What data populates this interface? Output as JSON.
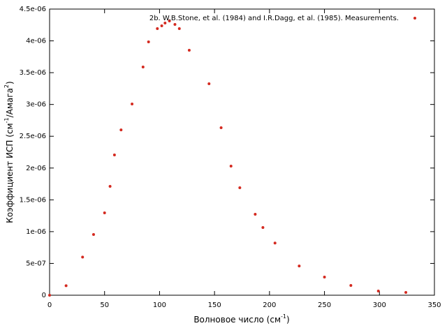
{
  "chart_data": {
    "type": "scatter",
    "x_label": [
      "Волновое число (см",
      "-1",
      ")"
    ],
    "y_label": [
      "Коэффициент ИСП (см",
      "-1",
      "/Амага",
      "2",
      ")"
    ],
    "series": [
      {
        "name": "2b. W.B.Stone, et al. (1984) and I.R.Dagg, et al. (1985). Measurements.",
        "color": "#d42a20",
        "x": [
          0,
          15,
          30,
          40,
          50,
          55,
          59,
          65,
          75,
          85,
          90,
          98,
          102,
          105,
          109,
          114,
          118,
          127,
          145,
          156,
          165,
          173,
          187,
          194,
          205,
          227,
          250,
          274,
          299,
          324
        ],
        "values": [
          0,
          1.5e-07,
          6e-07,
          9.55e-07,
          1.295e-06,
          1.712e-06,
          2.206e-06,
          2.6e-06,
          3.007e-06,
          3.589e-06,
          3.984e-06,
          4.193e-06,
          4.237e-06,
          4.28e-06,
          4.313e-06,
          4.259e-06,
          4.193e-06,
          3.853e-06,
          3.326e-06,
          2.634e-06,
          2.03e-06,
          1.69e-06,
          1.273e-06,
          1.065e-06,
          8.2e-07,
          4.6e-07,
          2.85e-07,
          1.54e-07,
          6.6e-08,
          4.4e-08
        ]
      }
    ],
    "xlim": [
      0,
      350
    ],
    "xticks": [
      0,
      50,
      100,
      150,
      200,
      250,
      300,
      350
    ],
    "ylim": [
      0,
      4.5e-06
    ],
    "yticks": [
      0,
      {
        "value": 5e-07,
        "label": "5e-07"
      },
      {
        "value": 1e-06,
        "label": "1e-06"
      },
      {
        "value": 1.5e-06,
        "label": "1.5e-06"
      },
      {
        "value": 2e-06,
        "label": "2e-06"
      },
      {
        "value": 2.5e-06,
        "label": "2.5e-06"
      },
      {
        "value": 3e-06,
        "label": "3e-06"
      },
      {
        "value": 3.5e-06,
        "label": "3.5e-06"
      },
      {
        "value": 4e-06,
        "label": "4e-06"
      },
      {
        "value": 4.5e-06,
        "label": "4.5e-06"
      }
    ],
    "legend": "top-right",
    "grid": false
  }
}
